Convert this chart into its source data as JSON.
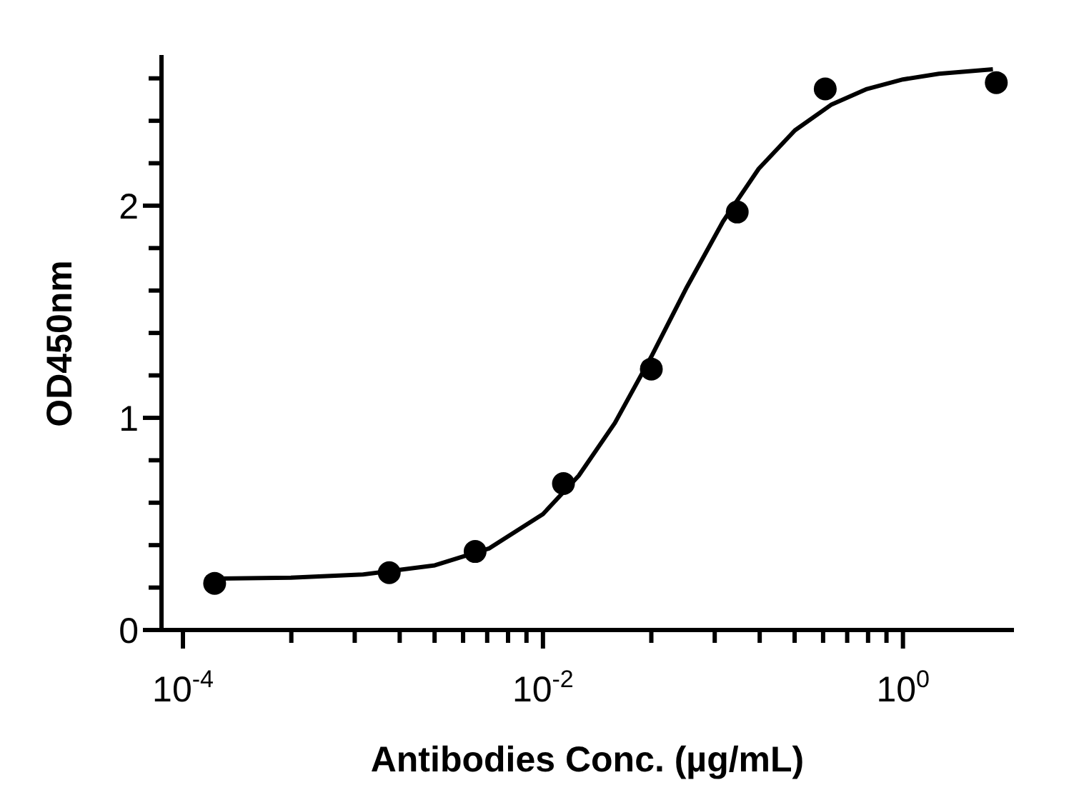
{
  "chart_data": {
    "type": "scatter",
    "xlabel": "Antibodies Conc. (µg/mL)",
    "ylabel": "OD450nm",
    "log": "x",
    "grid": false,
    "legend": false,
    "marker": "circle",
    "xlim": [
      7.6e-05,
      4.1
    ],
    "ylim": [
      0,
      2.7
    ],
    "xticks": [
      {
        "value": 0.0001,
        "label": "10$^{-4}$"
      },
      {
        "value": 0.0004,
        "label": null
      },
      {
        "value": 0.0009,
        "label": null
      },
      {
        "value": 0.0016,
        "label": null
      },
      {
        "value": 0.0025,
        "label": null
      },
      {
        "value": 0.0036,
        "label": null
      },
      {
        "value": 0.0049,
        "label": null
      },
      {
        "value": 0.0064,
        "label": null
      },
      {
        "value": 0.0081,
        "label": null
      },
      {
        "value": 0.01,
        "label": "10$^{-2}$"
      },
      {
        "value": 0.04,
        "label": null
      },
      {
        "value": 0.09,
        "label": null
      },
      {
        "value": 0.16,
        "label": null
      },
      {
        "value": 0.25,
        "label": null
      },
      {
        "value": 0.36,
        "label": null
      },
      {
        "value": 0.49,
        "label": null
      },
      {
        "value": 0.64,
        "label": null
      },
      {
        "value": 0.81,
        "label": null
      },
      {
        "value": 1,
        "label": "10$^{0}$"
      }
    ],
    "yticks": [
      0,
      {
        "value": 0.2,
        "label": null
      },
      {
        "value": 0.4,
        "label": null
      },
      {
        "value": 0.6,
        "label": null
      },
      {
        "value": 0.8,
        "label": null
      },
      1,
      {
        "value": 1.2,
        "label": null
      },
      {
        "value": 1.4,
        "label": null
      },
      {
        "value": 1.6,
        "label": null
      },
      {
        "value": 1.8,
        "label": null
      },
      2,
      {
        "value": 2.2,
        "label": null
      },
      {
        "value": 2.4,
        "label": null
      },
      {
        "value": 2.6,
        "label": null
      }
    ],
    "series": [
      {
        "color": "#000000",
        "x": [
          0.00015,
          0.0014,
          0.0042,
          0.013,
          0.04,
          0.12,
          0.37,
          3.3
        ],
        "values": [
          0.22,
          0.27,
          0.37,
          0.69,
          1.23,
          1.97,
          2.55,
          2.58
        ]
      },
      {
        "type": "line",
        "color": "#000000",
        "marker": "none",
        "line_style": "solid",
        "x": [
          0.000158,
          0.000398,
          0.001,
          0.00251,
          0.00501,
          0.01,
          0.0158,
          0.0251,
          0.0398,
          0.0631,
          0.1,
          0.158,
          0.251,
          0.398,
          0.631,
          1,
          1.585,
          3.16
        ],
        "values": [
          0.242,
          0.247,
          0.262,
          0.305,
          0.384,
          0.546,
          0.727,
          0.976,
          1.285,
          1.617,
          1.925,
          2.174,
          2.355,
          2.475,
          2.55,
          2.595,
          2.622,
          2.643
        ]
      }
    ]
  }
}
